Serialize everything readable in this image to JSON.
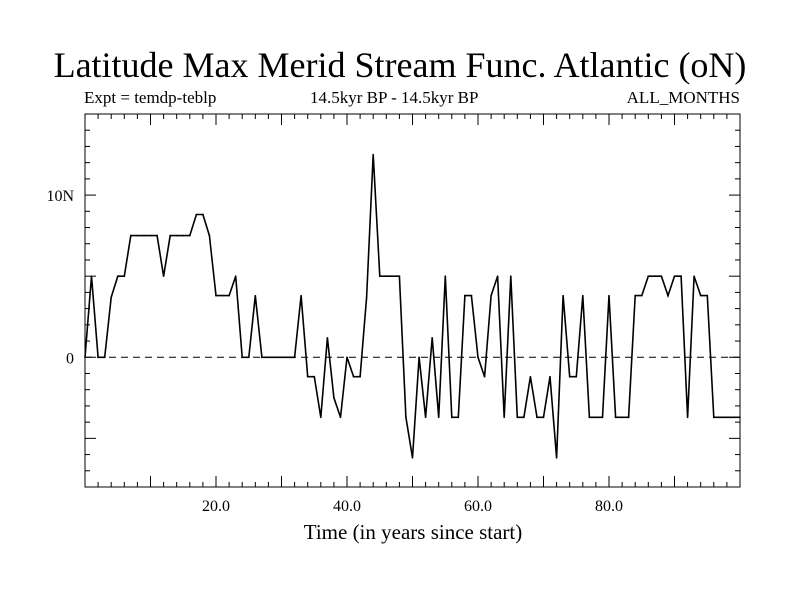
{
  "chart_data": {
    "type": "line",
    "title": "Latitude Max Merid Stream Func. Atlantic (oN)",
    "subtitle_left": "Expt = temdp-teblp",
    "subtitle_center": "14.5kyr BP - 14.5kyr BP",
    "subtitle_right": "ALL_MONTHS",
    "xlabel": "Time (in years since start)",
    "ylabel": "",
    "xlim": [
      0,
      100
    ],
    "ylim": [
      -8,
      15
    ],
    "x_ticks": [
      {
        "value": 20,
        "label": "20.0"
      },
      {
        "value": 40,
        "label": "40.0"
      },
      {
        "value": 60,
        "label": "60.0"
      },
      {
        "value": 80,
        "label": "80.0"
      }
    ],
    "y_ticks": [
      {
        "value": 0,
        "label": "0"
      },
      {
        "value": 10,
        "label": "10N"
      }
    ],
    "zero_line": "dashed",
    "series": [
      {
        "name": "temdp-teblp",
        "x": [
          0,
          1,
          2,
          3,
          4,
          5,
          6,
          7,
          8,
          9,
          10,
          11,
          12,
          13,
          14,
          15,
          16,
          17,
          18,
          19,
          20,
          21,
          22,
          23,
          24,
          25,
          26,
          27,
          28,
          29,
          30,
          31,
          32,
          33,
          34,
          35,
          36,
          37,
          38,
          39,
          40,
          41,
          42,
          43,
          44,
          45,
          46,
          47,
          48,
          49,
          50,
          51,
          52,
          53,
          54,
          55,
          56,
          57,
          58,
          59,
          60,
          61,
          62,
          63,
          64,
          65,
          66,
          67,
          68,
          69,
          70,
          71,
          72,
          73,
          74,
          75,
          76,
          77,
          78,
          79,
          80,
          81,
          82,
          83,
          84,
          85,
          86,
          87,
          88,
          89,
          90,
          91,
          92,
          93,
          94,
          95,
          96,
          97,
          98,
          99,
          100
        ],
        "values": [
          0,
          5,
          0,
          0,
          3.7,
          5,
          5,
          7.5,
          7.5,
          7.5,
          7.5,
          7.5,
          5,
          7.5,
          7.5,
          7.5,
          7.5,
          8.8,
          8.8,
          7.5,
          3.8,
          3.8,
          3.8,
          5,
          0,
          0,
          3.8,
          0,
          0,
          0,
          0,
          0,
          0,
          3.8,
          -1.2,
          -1.2,
          -3.7,
          1.2,
          -2.5,
          -3.7,
          0,
          -1.2,
          -1.2,
          3.7,
          12.5,
          5,
          5,
          5,
          5,
          -3.7,
          -6.2,
          0,
          -3.7,
          1.2,
          -3.7,
          5,
          -3.7,
          -3.7,
          3.8,
          3.8,
          0,
          -1.2,
          3.8,
          5,
          -3.7,
          5,
          -3.7,
          -3.7,
          -1.2,
          -3.7,
          -3.7,
          -1.2,
          -6.2,
          3.8,
          -1.2,
          -1.2,
          3.8,
          -3.7,
          -3.7,
          -3.7,
          3.8,
          -3.7,
          -3.7,
          -3.7,
          3.8,
          3.8,
          5,
          5,
          5,
          3.8,
          5,
          5,
          -3.7,
          5,
          3.8,
          3.8,
          -3.7,
          -3.7,
          -3.7,
          -3.7,
          -3.7
        ]
      }
    ]
  }
}
